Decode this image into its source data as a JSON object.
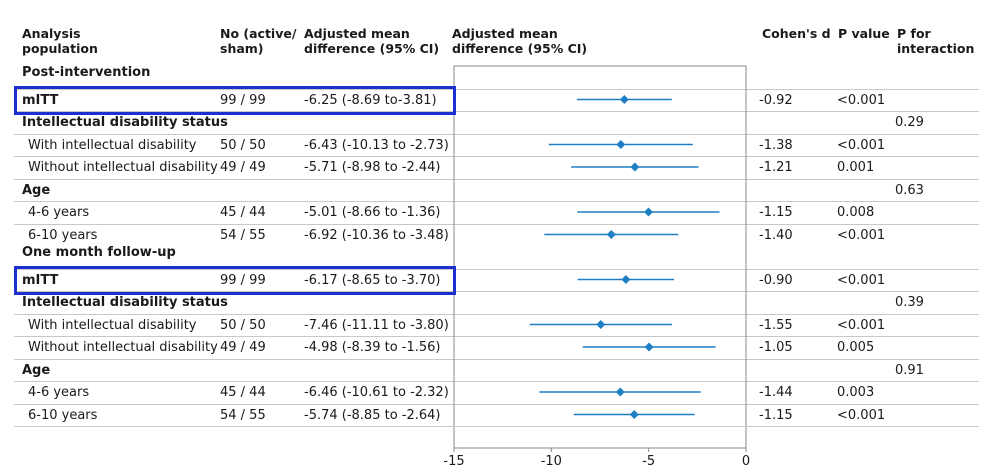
{
  "headers": {
    "population_line1": "Analysis",
    "population_line2": "population",
    "n_line1": "No (active/",
    "n_line2": "sham)",
    "ci_line1": "Adjusted mean",
    "ci_line2": "difference (95% CI)",
    "plot_line1": "Adjusted mean",
    "plot_line2": "difference (95% CI)",
    "d": "Cohen's d",
    "p": "P value",
    "int_line1": "P for",
    "int_line2": "interaction"
  },
  "rows": [
    {
      "label": "Post-intervention",
      "kind": "timepoint"
    },
    {
      "label": "mITT",
      "kind": "bold",
      "n": "99 / 99",
      "ci": "-6.25 (-8.69 to-3.81)",
      "d": "-0.92",
      "p": "<0.001",
      "highlight": true
    },
    {
      "label": "Intellectual disability status",
      "kind": "section",
      "int": "0.29"
    },
    {
      "label": "With intellectual disability",
      "kind": "sub",
      "n": "50 / 50",
      "ci": "-6.43 (-10.13 to -2.73)",
      "d": "-1.38",
      "p": "<0.001"
    },
    {
      "label": "Without intellectual disability",
      "kind": "sub",
      "n": "49 / 49",
      "ci": "-5.71 (-8.98 to -2.44)",
      "d": "-1.21",
      "p": "0.001"
    },
    {
      "label": "Age",
      "kind": "section",
      "int": "0.63"
    },
    {
      "label": "4-6 years",
      "kind": "sub",
      "n": "45 / 44",
      "ci": "-5.01 (-8.66 to -1.36)",
      "d": "-1.15",
      "p": "0.008"
    },
    {
      "label": "6-10 years",
      "kind": "sub",
      "n": "54 / 55",
      "ci": "-6.92 (-10.36 to -3.48)",
      "d": "-1.40",
      "p": "<0.001"
    },
    {
      "label": "One month follow-up",
      "kind": "timepoint"
    },
    {
      "label": "mITT",
      "kind": "bold",
      "n": "99 / 99",
      "ci": "-6.17 (-8.65 to -3.70)",
      "d": "-0.90",
      "p": "<0.001",
      "highlight": true
    },
    {
      "label": "Intellectual disability status",
      "kind": "section",
      "int": "0.39"
    },
    {
      "label": "With intellectual disability",
      "kind": "sub",
      "n": "50 / 50",
      "ci": "-7.46 (-11.11 to -3.80)",
      "d": "-1.55",
      "p": "<0.001"
    },
    {
      "label": "Without intellectual disability",
      "kind": "sub",
      "n": "49 / 49",
      "ci": "-4.98 (-8.39 to -1.56)",
      "d": "-1.05",
      "p": "0.005"
    },
    {
      "label": "Age",
      "kind": "section",
      "int": "0.91"
    },
    {
      "label": "4-6 years",
      "kind": "sub",
      "n": "45 / 44",
      "ci": "-6.46 (-10.61 to -2.32)",
      "d": "-1.44",
      "p": "0.003"
    },
    {
      "label": "6-10 years",
      "kind": "sub",
      "n": "54 / 55",
      "ci": "-5.74 (-8.85 to -2.64)",
      "d": "-1.15",
      "p": "<0.001"
    }
  ],
  "chart_data": {
    "type": "forest",
    "xlim": [
      -15,
      0
    ],
    "xticks": [
      "-15",
      "-10",
      "-5",
      "0"
    ],
    "marker_color": "#1f7fc4",
    "highlight_color": "#1c2fcf",
    "points": [
      {
        "estimate": -6.25,
        "lower": -8.69,
        "upper": -3.81
      },
      {
        "estimate": -6.43,
        "lower": -10.13,
        "upper": -2.73
      },
      {
        "estimate": -5.71,
        "lower": -8.98,
        "upper": -2.44
      },
      {
        "estimate": -5.01,
        "lower": -8.66,
        "upper": -1.36
      },
      {
        "estimate": -6.92,
        "lower": -10.36,
        "upper": -3.48
      },
      {
        "estimate": -6.17,
        "lower": -8.65,
        "upper": -3.7
      },
      {
        "estimate": -7.46,
        "lower": -11.11,
        "upper": -3.8
      },
      {
        "estimate": -4.98,
        "lower": -8.39,
        "upper": -1.56
      },
      {
        "estimate": -6.46,
        "lower": -10.61,
        "upper": -2.32
      },
      {
        "estimate": -5.74,
        "lower": -8.85,
        "upper": -2.64
      }
    ]
  }
}
